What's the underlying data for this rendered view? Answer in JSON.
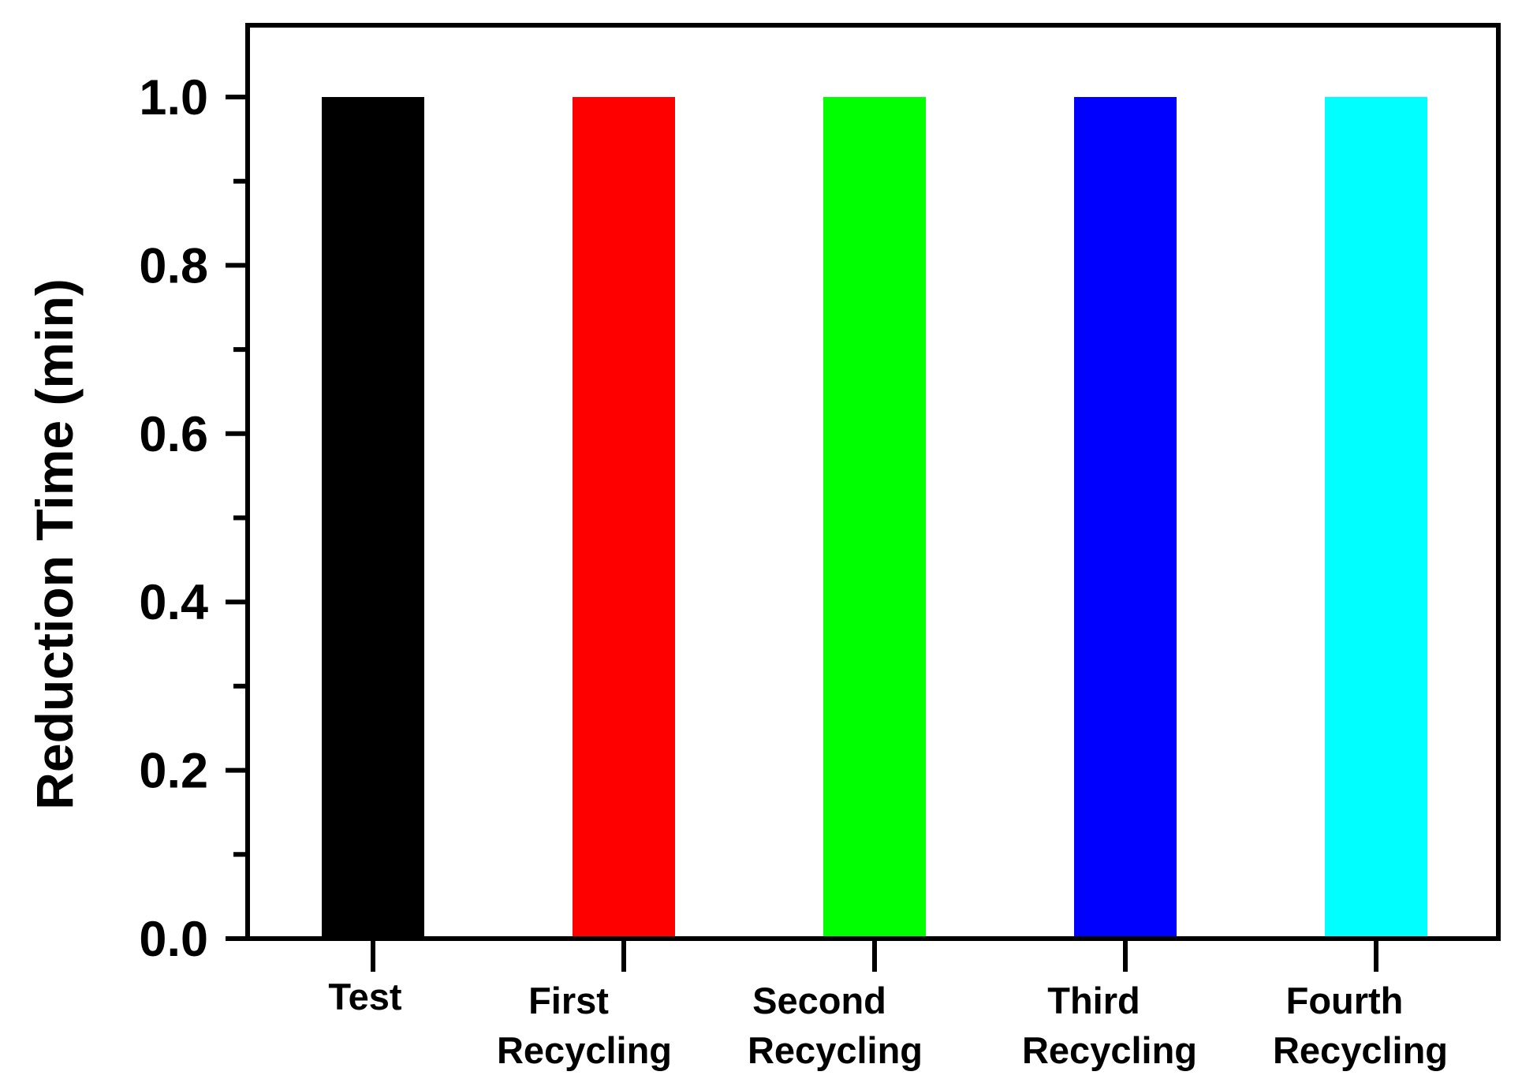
{
  "chart_data": {
    "type": "bar",
    "title": "",
    "xlabel": "",
    "ylabel": "Reduction Time (min)",
    "ylim": [
      0.0,
      1.0
    ],
    "yticks": [
      "0.0",
      "0.2",
      "0.4",
      "0.6",
      "0.8",
      "1.0"
    ],
    "grid": false,
    "legend": "none",
    "categories": [
      [
        "Test"
      ],
      [
        "First",
        "Recycling"
      ],
      [
        "Second",
        "Recycling"
      ],
      [
        "Third",
        "Recycling"
      ],
      [
        "Fourth",
        "Recycling"
      ]
    ],
    "values": [
      1.0,
      1.0,
      1.0,
      1.0,
      1.0
    ],
    "colors": [
      "#000000",
      "#ff0000",
      "#00ff00",
      "#0000ff",
      "#00ffff"
    ]
  }
}
